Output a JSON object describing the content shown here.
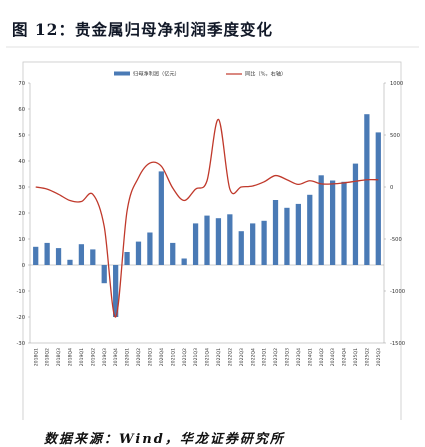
{
  "title": "图 12：贵金属归母净利润季度变化",
  "source": "数据来源：Wind，华龙证券研究所",
  "chart_data": {
    "type": "bar+line",
    "categories": [
      "2018Q1",
      "2018Q2",
      "2018Q3",
      "2018Q4",
      "2019Q1",
      "2019Q2",
      "2019Q3",
      "2019Q4",
      "2020Q1",
      "2020Q2",
      "2020Q3",
      "2020Q4",
      "2021Q1",
      "2021Q2",
      "2021Q3",
      "2021Q4",
      "2022Q1",
      "2022Q2",
      "2022Q3",
      "2022Q4",
      "2023Q1",
      "2023Q2",
      "2023Q3",
      "2023Q4",
      "2024Q1",
      "2024Q2",
      "2024Q3",
      "2024Q4",
      "2025Q1",
      "2025Q2",
      "2025Q3"
    ],
    "series": [
      {
        "name": "归母净利润（亿元）",
        "type": "bar",
        "axis": "left",
        "color": "#4a7ab5",
        "values": [
          7,
          8.5,
          6.5,
          2,
          8,
          6,
          -7,
          -20,
          5,
          9,
          12.5,
          36,
          8.5,
          2.5,
          16,
          19,
          18,
          19.5,
          13,
          16,
          17,
          25,
          22,
          23.5,
          27,
          34.5,
          32.5,
          32,
          39,
          58,
          51
        ]
      },
      {
        "name": "同比（%，右轴）",
        "type": "line",
        "axis": "right",
        "color": "#c0392b",
        "values": [
          0,
          -20,
          -70,
          -130,
          -140,
          -70,
          -380,
          -1250,
          -230,
          90,
          230,
          200,
          -10,
          -130,
          -20,
          60,
          650,
          -20,
          0,
          10,
          50,
          110,
          70,
          25,
          60,
          30,
          30,
          40,
          55,
          70,
          70
        ]
      }
    ],
    "y_left": {
      "min": -30,
      "max": 70,
      "ticks": [
        -30,
        -20,
        -10,
        0,
        10,
        20,
        30,
        40,
        50,
        60,
        70
      ]
    },
    "y_right": {
      "min": -1500,
      "max": 1000,
      "ticks": [
        -1500,
        -1000,
        -500,
        0,
        500,
        1000
      ]
    },
    "legend": "top-center"
  }
}
